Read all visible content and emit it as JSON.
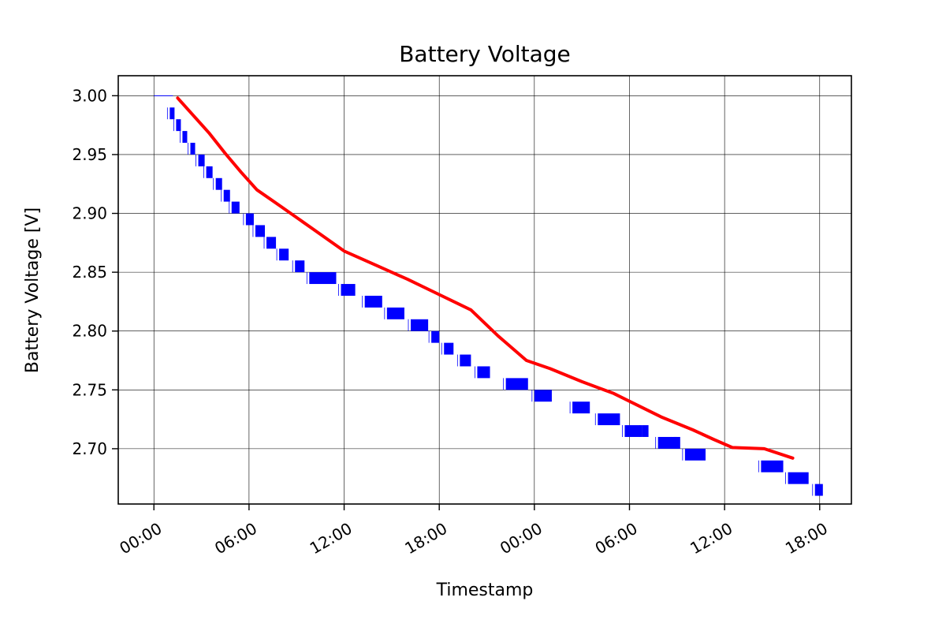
{
  "chart_data": {
    "type": "line",
    "title": "Battery Voltage",
    "xlabel": "Timestamp",
    "ylabel": "Battery Voltage [V]",
    "x_unit": "hours",
    "xlim": [
      -2.25,
      44
    ],
    "ylim": [
      2.653,
      3.017
    ],
    "x_ticks": [
      0,
      6,
      12,
      18,
      24,
      30,
      36,
      42
    ],
    "x_tick_labels": [
      "00:00",
      "06:00",
      "12:00",
      "18:00",
      "00:00",
      "06:00",
      "12:00",
      "18:00"
    ],
    "y_ticks": [
      2.7,
      2.75,
      2.8,
      2.85,
      2.9,
      2.95,
      3.0
    ],
    "y_tick_labels": [
      "2.70",
      "2.75",
      "2.80",
      "2.85",
      "2.90",
      "2.95",
      "3.00"
    ],
    "grid": true,
    "colors": {
      "raw": "#0000ff",
      "trend": "#ff0000"
    },
    "series": [
      {
        "values": [
          {
            "x": [
              0.0,
              1.2
            ],
            "y": 3.0
          },
          {
            "x": [
              1.0,
              1.3
            ],
            "y": 2.99
          },
          {
            "x": [
              1.4,
              1.7
            ],
            "y": 2.98
          },
          {
            "x": [
              1.8,
              2.1
            ],
            "y": 2.97
          },
          {
            "x": [
              2.3,
              2.6
            ],
            "y": 2.96
          },
          {
            "x": [
              2.8,
              3.2
            ],
            "y": 2.95
          },
          {
            "x": [
              3.3,
              3.7
            ],
            "y": 2.94
          },
          {
            "x": [
              3.9,
              4.3
            ],
            "y": 2.93
          },
          {
            "x": [
              4.4,
              4.8
            ],
            "y": 2.92
          },
          {
            "x": [
              4.9,
              5.4
            ],
            "y": 2.91
          },
          {
            "x": [
              5.8,
              6.3
            ],
            "y": 2.9
          },
          {
            "x": [
              6.4,
              7.0
            ],
            "y": 2.89
          },
          {
            "x": [
              7.1,
              7.7
            ],
            "y": 2.88
          },
          {
            "x": [
              7.9,
              8.5
            ],
            "y": 2.87
          },
          {
            "x": [
              8.9,
              9.5
            ],
            "y": 2.86
          },
          {
            "x": [
              9.8,
              11.5
            ],
            "y": 2.85
          },
          {
            "x": [
              11.8,
              12.7
            ],
            "y": 2.84
          },
          {
            "x": [
              13.3,
              14.4
            ],
            "y": 2.83
          },
          {
            "x": [
              14.7,
              15.8
            ],
            "y": 2.82
          },
          {
            "x": [
              16.2,
              17.3
            ],
            "y": 2.81
          },
          {
            "x": [
              17.5,
              18.0
            ],
            "y": 2.8
          },
          {
            "x": [
              18.3,
              18.9
            ],
            "y": 2.79
          },
          {
            "x": [
              19.3,
              20.0
            ],
            "y": 2.78
          },
          {
            "x": [
              20.4,
              21.2
            ],
            "y": 2.77
          },
          {
            "x": [
              22.2,
              23.6
            ],
            "y": 2.76
          },
          {
            "x": [
              24.0,
              25.1
            ],
            "y": 2.75
          },
          {
            "x": [
              26.4,
              27.5
            ],
            "y": 2.74
          },
          {
            "x": [
              28.0,
              29.4
            ],
            "y": 2.73
          },
          {
            "x": [
              29.7,
              30.8
            ],
            "y": 2.72
          },
          {
            "x": [
              30.8,
              31.2
            ],
            "y": 2.72
          },
          {
            "x": [
              31.8,
              33.0
            ],
            "y": 2.71
          },
          {
            "x": [
              32.8,
              33.2
            ],
            "y": 2.71
          },
          {
            "x": [
              33.5,
              34.8
            ],
            "y": 2.7
          },
          {
            "x": [
              38.3,
              39.7
            ],
            "y": 2.69
          },
          {
            "x": [
              40.0,
              41.3
            ],
            "y": 2.68
          },
          {
            "x": [
              41.7,
              42.2
            ],
            "y": 2.67
          }
        ]
      },
      {
        "x": [
          1.5,
          2.5,
          3.5,
          4.5,
          5.5,
          6.5,
          8.0,
          10.0,
          12.0,
          14.0,
          16.0,
          18.0,
          20.0,
          21.7,
          23.5,
          25.0,
          27.0,
          29.0,
          30.5,
          32.0,
          34.0,
          35.3,
          36.5,
          38.5,
          40.3
        ],
        "y": [
          2.998,
          2.983,
          2.968,
          2.951,
          2.935,
          2.92,
          2.906,
          2.887,
          2.868,
          2.856,
          2.844,
          2.831,
          2.818,
          2.796,
          2.775,
          2.768,
          2.757,
          2.747,
          2.737,
          2.727,
          2.716,
          2.708,
          2.701,
          2.7,
          2.692
        ]
      }
    ]
  }
}
